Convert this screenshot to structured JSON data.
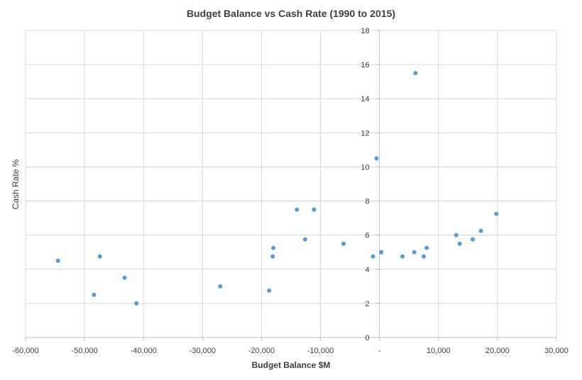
{
  "chart_data": {
    "type": "scatter",
    "title": "Budget Balance vs Cash Rate (1990 to 2015)",
    "xlabel": "Budget Balance $M",
    "ylabel": "Cash Rate %",
    "xlim": [
      -60000,
      30000
    ],
    "ylim": [
      0,
      18
    ],
    "x_ticks": [
      -60000,
      -50000,
      -40000,
      -30000,
      -20000,
      -10000,
      0,
      10000,
      20000,
      30000
    ],
    "x_tick_labels": [
      "-60,000",
      "-50,000",
      "-40,000",
      "-30,000",
      "-20,000",
      "-10,000",
      "-",
      "10,000",
      "20,000",
      "30,000"
    ],
    "y_ticks": [
      0,
      2,
      4,
      6,
      8,
      10,
      12,
      14,
      16,
      18
    ],
    "y_tick_labels": [
      "0",
      "2",
      "4",
      "6",
      "8",
      "10",
      "12",
      "14",
      "16",
      "18"
    ],
    "grid": "vertical-and-horizontal",
    "marker_color": "#5b9bd5",
    "points": [
      {
        "x": -54500,
        "y": 4.5
      },
      {
        "x": -48400,
        "y": 2.5
      },
      {
        "x": -47400,
        "y": 4.75
      },
      {
        "x": -43200,
        "y": 3.5
      },
      {
        "x": -41200,
        "y": 2.0
      },
      {
        "x": -27000,
        "y": 3.0
      },
      {
        "x": -18700,
        "y": 2.75
      },
      {
        "x": -18100,
        "y": 4.75
      },
      {
        "x": -18000,
        "y": 5.25
      },
      {
        "x": -14000,
        "y": 7.5
      },
      {
        "x": -12600,
        "y": 5.75
      },
      {
        "x": -11100,
        "y": 7.5
      },
      {
        "x": -6100,
        "y": 5.5
      },
      {
        "x": -1100,
        "y": 4.75
      },
      {
        "x": -500,
        "y": 10.5
      },
      {
        "x": 300,
        "y": 5.0
      },
      {
        "x": 3900,
        "y": 4.75
      },
      {
        "x": 5900,
        "y": 5.0
      },
      {
        "x": 6100,
        "y": 15.5
      },
      {
        "x": 7500,
        "y": 4.75
      },
      {
        "x": 8000,
        "y": 5.25
      },
      {
        "x": 13000,
        "y": 6.0
      },
      {
        "x": 13600,
        "y": 5.5
      },
      {
        "x": 15800,
        "y": 5.75
      },
      {
        "x": 17200,
        "y": 6.25
      },
      {
        "x": 19800,
        "y": 7.25
      }
    ]
  }
}
